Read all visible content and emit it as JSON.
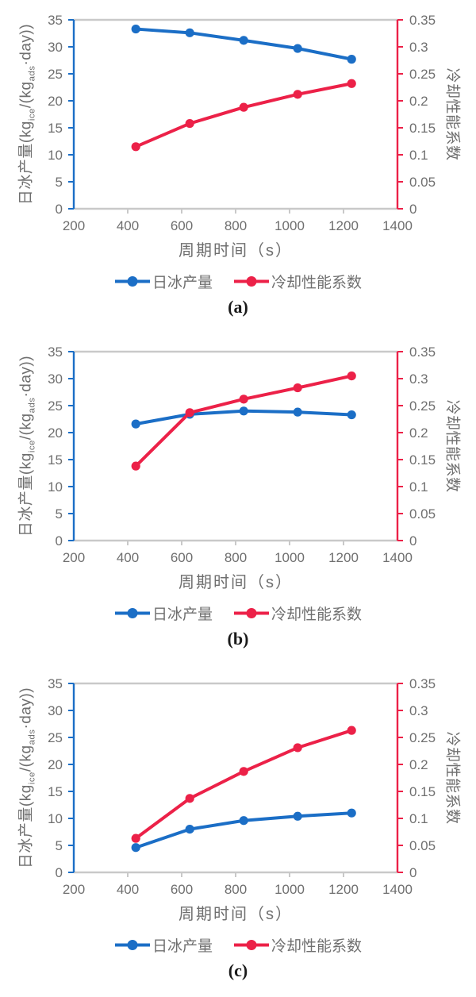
{
  "colors": {
    "blue": "#1B6EC6",
    "red": "#EC2148",
    "axis_gray": "#C9C9C9",
    "text_gray": "#6F6F6F"
  },
  "labels": {
    "x": "周期时间（s）",
    "y_left_p1": "日冰产量(kg",
    "y_left_sub1": "ice",
    "y_left_p2": "/(kg",
    "y_left_sub2": "ads",
    "y_left_p3": "·day))",
    "y_left_full": "日冰产量(kg_ice/(kg_ads·day))",
    "y_right": "冷却性能系数",
    "legend_ice": "日冰产量",
    "legend_cop": "冷却性能系数"
  },
  "axes": {
    "x": {
      "min": 200,
      "max": 1400,
      "ticks": [
        200,
        400,
        600,
        800,
        1000,
        1200,
        1400
      ],
      "tick_labels": [
        "200",
        "400",
        "600",
        "800",
        "1000",
        "1200",
        "1400"
      ]
    },
    "y_left": {
      "min": 0,
      "max": 35,
      "ticks": [
        0,
        5,
        10,
        15,
        20,
        25,
        30,
        35
      ],
      "tick_labels": [
        "0",
        "5",
        "10",
        "15",
        "20",
        "25",
        "30",
        "35"
      ]
    },
    "y_right": {
      "min": 0,
      "max": 0.35,
      "ticks": [
        0,
        0.05,
        0.1,
        0.15,
        0.2,
        0.25,
        0.3,
        0.35
      ],
      "tick_labels": [
        "0",
        "0.05",
        "0.1",
        "0.15",
        "0.2",
        "0.25",
        "0.3",
        "0.35"
      ]
    }
  },
  "chart_data": [
    {
      "id": "a",
      "caption": "(a)",
      "type": "line",
      "xlabel": "周期时间（s）",
      "ylabel_left": "日冰产量(kg_ice/(kg_ads·day))",
      "ylabel_right": "冷却性能系数",
      "x_range": [
        200,
        1400
      ],
      "ylim_left": [
        0,
        35
      ],
      "ylim_right": [
        0,
        0.35
      ],
      "grid": false,
      "legend_position": "bottom",
      "x": [
        430,
        630,
        830,
        1030,
        1230
      ],
      "series": [
        {
          "key": "daily_ice_production",
          "name": "日冰产量",
          "axis": "left",
          "color": "#1B6EC6",
          "values": [
            33.3,
            32.6,
            31.2,
            29.7,
            27.7
          ]
        },
        {
          "key": "cooling_cop",
          "name": "冷却性能系数",
          "axis": "right",
          "color": "#EC2148",
          "values": [
            0.115,
            0.158,
            0.188,
            0.212,
            0.232
          ]
        }
      ]
    },
    {
      "id": "b",
      "caption": "(b)",
      "type": "line",
      "xlabel": "周期时间（s）",
      "ylabel_left": "日冰产量(kg_ice/(kg_ads·day))",
      "ylabel_right": "冷却性能系数",
      "x_range": [
        200,
        1400
      ],
      "ylim_left": [
        0,
        35
      ],
      "ylim_right": [
        0,
        0.35
      ],
      "grid": false,
      "legend_position": "bottom",
      "x": [
        430,
        630,
        830,
        1030,
        1230
      ],
      "series": [
        {
          "key": "daily_ice_production",
          "name": "日冰产量",
          "axis": "left",
          "color": "#1B6EC6",
          "values": [
            21.6,
            23.4,
            24.0,
            23.8,
            23.3
          ]
        },
        {
          "key": "cooling_cop",
          "name": "冷却性能系数",
          "axis": "right",
          "color": "#EC2148",
          "values": [
            0.138,
            0.237,
            0.262,
            0.283,
            0.305
          ]
        }
      ]
    },
    {
      "id": "c",
      "caption": "(c)",
      "type": "line",
      "xlabel": "周期时间（s）",
      "ylabel_left": "日冰产量(kg_ice/(kg_ads·day))",
      "ylabel_right": "冷却性能系数",
      "x_range": [
        200,
        1400
      ],
      "ylim_left": [
        0,
        35
      ],
      "ylim_right": [
        0,
        0.35
      ],
      "grid": false,
      "legend_position": "bottom",
      "x": [
        430,
        630,
        830,
        1030,
        1230
      ],
      "series": [
        {
          "key": "daily_ice_production",
          "name": "日冰产量",
          "axis": "left",
          "color": "#1B6EC6",
          "values": [
            4.6,
            8.0,
            9.6,
            10.4,
            11.0
          ]
        },
        {
          "key": "cooling_cop",
          "name": "冷却性能系数",
          "axis": "right",
          "color": "#EC2148",
          "values": [
            0.063,
            0.137,
            0.187,
            0.231,
            0.263
          ]
        }
      ]
    }
  ]
}
